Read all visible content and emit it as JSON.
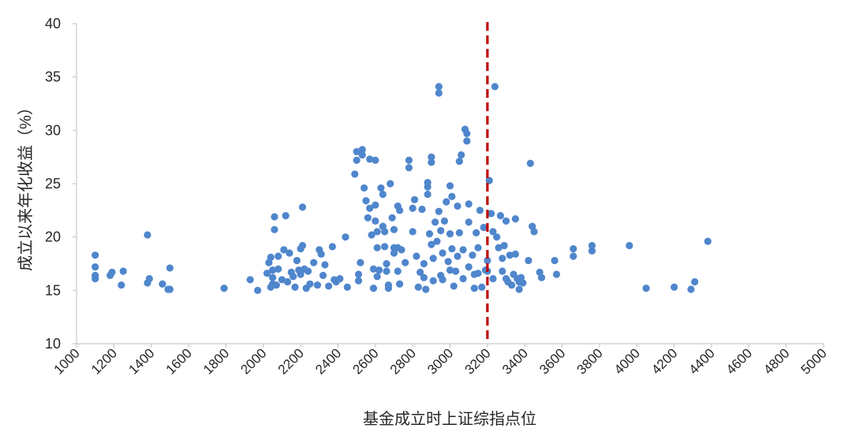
{
  "chart_data": {
    "type": "scatter",
    "title": "",
    "xlabel": "基金成立时上证综指点位",
    "ylabel": "成立以来年化收益（%）",
    "xlim": [
      1000,
      5000
    ],
    "ylim": [
      10,
      40
    ],
    "x_ticks": [
      1000,
      1200,
      1400,
      1600,
      1800,
      2000,
      2200,
      2400,
      2600,
      2800,
      3000,
      3200,
      3400,
      3600,
      3800,
      4000,
      4200,
      4400,
      4600,
      4800,
      5000
    ],
    "y_ticks": [
      10,
      15,
      20,
      25,
      30,
      35,
      40
    ],
    "grid": false,
    "legend": "none",
    "reference_line": {
      "x": 3200,
      "style": "dashed",
      "color": "#c00000"
    },
    "colors": {
      "points": "#4f86cc",
      "axis": "#bfbfbf",
      "text": "#262626",
      "reference": "#c00000"
    },
    "series": [
      {
        "points": [
          [
            1100,
            18.3
          ],
          [
            1100,
            17.2
          ],
          [
            1100,
            16.4
          ],
          [
            1100,
            16.1
          ],
          [
            1180,
            16.4
          ],
          [
            1190,
            16.7
          ],
          [
            1240,
            15.5
          ],
          [
            1250,
            16.8
          ],
          [
            1380,
            20.2
          ],
          [
            1380,
            15.7
          ],
          [
            1390,
            16.1
          ],
          [
            1460,
            15.6
          ],
          [
            1490,
            15.1
          ],
          [
            1500,
            15.1
          ],
          [
            1500,
            17.1
          ],
          [
            1790,
            15.2
          ],
          [
            1930,
            16.0
          ],
          [
            1970,
            15.0
          ],
          [
            2020,
            16.6
          ],
          [
            2030,
            17.6
          ],
          [
            2040,
            18.1
          ],
          [
            2040,
            15.3
          ],
          [
            2050,
            16.9
          ],
          [
            2050,
            16.2
          ],
          [
            2050,
            15.6
          ],
          [
            2060,
            20.7
          ],
          [
            2060,
            21.9
          ],
          [
            2070,
            15.5
          ],
          [
            2080,
            18.2
          ],
          [
            2080,
            17.0
          ],
          [
            2100,
            16.0
          ],
          [
            2110,
            18.8
          ],
          [
            2120,
            22.0
          ],
          [
            2130,
            15.8
          ],
          [
            2140,
            18.5
          ],
          [
            2150,
            16.7
          ],
          [
            2160,
            16.3
          ],
          [
            2170,
            15.3
          ],
          [
            2180,
            17.8
          ],
          [
            2190,
            16.9
          ],
          [
            2200,
            16.5
          ],
          [
            2200,
            18.9
          ],
          [
            2210,
            19.2
          ],
          [
            2210,
            22.8
          ],
          [
            2220,
            17.0
          ],
          [
            2230,
            15.2
          ],
          [
            2240,
            16.8
          ],
          [
            2250,
            15.6
          ],
          [
            2270,
            17.6
          ],
          [
            2290,
            15.5
          ],
          [
            2300,
            18.8
          ],
          [
            2310,
            18.4
          ],
          [
            2320,
            16.4
          ],
          [
            2330,
            17.4
          ],
          [
            2350,
            15.4
          ],
          [
            2370,
            19.1
          ],
          [
            2380,
            16.0
          ],
          [
            2390,
            15.8
          ],
          [
            2410,
            16.1
          ],
          [
            2440,
            20.0
          ],
          [
            2450,
            15.3
          ],
          [
            2490,
            25.9
          ],
          [
            2500,
            27.2
          ],
          [
            2500,
            28.0
          ],
          [
            2510,
            16.5
          ],
          [
            2510,
            15.9
          ],
          [
            2520,
            17.6
          ],
          [
            2530,
            28.2
          ],
          [
            2530,
            27.7
          ],
          [
            2540,
            24.6
          ],
          [
            2550,
            23.4
          ],
          [
            2560,
            21.8
          ],
          [
            2570,
            27.3
          ],
          [
            2570,
            22.7
          ],
          [
            2580,
            20.2
          ],
          [
            2590,
            17.0
          ],
          [
            2590,
            15.2
          ],
          [
            2600,
            27.2
          ],
          [
            2600,
            23.0
          ],
          [
            2600,
            21.5
          ],
          [
            2610,
            20.5
          ],
          [
            2610,
            19.0
          ],
          [
            2610,
            16.3
          ],
          [
            2620,
            16.9
          ],
          [
            2630,
            24.6
          ],
          [
            2640,
            24.0
          ],
          [
            2640,
            21.0
          ],
          [
            2650,
            20.5
          ],
          [
            2650,
            19.1
          ],
          [
            2660,
            17.5
          ],
          [
            2660,
            16.8
          ],
          [
            2670,
            15.5
          ],
          [
            2670,
            15.2
          ],
          [
            2680,
            25.0
          ],
          [
            2690,
            21.8
          ],
          [
            2700,
            20.7
          ],
          [
            2700,
            19.0
          ],
          [
            2700,
            18.5
          ],
          [
            2720,
            22.9
          ],
          [
            2720,
            19.0
          ],
          [
            2720,
            16.8
          ],
          [
            2730,
            22.5
          ],
          [
            2730,
            15.6
          ],
          [
            2740,
            18.8
          ],
          [
            2760,
            17.6
          ],
          [
            2780,
            27.2
          ],
          [
            2780,
            26.5
          ],
          [
            2800,
            22.7
          ],
          [
            2800,
            20.5
          ],
          [
            2810,
            23.5
          ],
          [
            2820,
            18.2
          ],
          [
            2830,
            15.3
          ],
          [
            2840,
            16.7
          ],
          [
            2850,
            22.6
          ],
          [
            2860,
            17.5
          ],
          [
            2860,
            16.2
          ],
          [
            2870,
            15.1
          ],
          [
            2880,
            25.1
          ],
          [
            2880,
            24.7
          ],
          [
            2880,
            24.0
          ],
          [
            2890,
            20.3
          ],
          [
            2900,
            27.5
          ],
          [
            2900,
            27.0
          ],
          [
            2900,
            19.3
          ],
          [
            2910,
            18.0
          ],
          [
            2910,
            15.9
          ],
          [
            2920,
            21.4
          ],
          [
            2930,
            19.6
          ],
          [
            2940,
            34.1
          ],
          [
            2940,
            33.5
          ],
          [
            2940,
            22.4
          ],
          [
            2950,
            20.6
          ],
          [
            2950,
            16.4
          ],
          [
            2960,
            18.5
          ],
          [
            2960,
            16.0
          ],
          [
            2970,
            21.5
          ],
          [
            2980,
            23.3
          ],
          [
            2990,
            17.7
          ],
          [
            3000,
            24.8
          ],
          [
            3000,
            20.3
          ],
          [
            3000,
            16.9
          ],
          [
            3010,
            23.8
          ],
          [
            3010,
            18.9
          ],
          [
            3020,
            15.4
          ],
          [
            3030,
            16.8
          ],
          [
            3040,
            22.9
          ],
          [
            3040,
            18.2
          ],
          [
            3050,
            27.1
          ],
          [
            3050,
            20.4
          ],
          [
            3060,
            27.7
          ],
          [
            3070,
            18.8
          ],
          [
            3070,
            16.1
          ],
          [
            3080,
            30.1
          ],
          [
            3090,
            29.7
          ],
          [
            3090,
            29.0
          ],
          [
            3100,
            23.1
          ],
          [
            3100,
            21.4
          ],
          [
            3100,
            17.2
          ],
          [
            3120,
            18.3
          ],
          [
            3130,
            16.5
          ],
          [
            3130,
            15.2
          ],
          [
            3140,
            20.4
          ],
          [
            3150,
            19.0
          ],
          [
            3150,
            16.6
          ],
          [
            3160,
            22.5
          ],
          [
            3170,
            15.3
          ],
          [
            3180,
            20.9
          ],
          [
            3190,
            16.9
          ],
          [
            3200,
            17.8
          ],
          [
            3200,
            16.8
          ],
          [
            3210,
            25.3
          ],
          [
            3220,
            22.2
          ],
          [
            3230,
            20.5
          ],
          [
            3230,
            16.1
          ],
          [
            3240,
            34.1
          ],
          [
            3250,
            20.0
          ],
          [
            3260,
            19.0
          ],
          [
            3270,
            22.0
          ],
          [
            3280,
            18.0
          ],
          [
            3280,
            16.8
          ],
          [
            3290,
            19.2
          ],
          [
            3300,
            21.5
          ],
          [
            3300,
            16.1
          ],
          [
            3310,
            15.8
          ],
          [
            3320,
            18.3
          ],
          [
            3330,
            15.5
          ],
          [
            3340,
            16.5
          ],
          [
            3350,
            21.7
          ],
          [
            3350,
            18.4
          ],
          [
            3360,
            16.1
          ],
          [
            3370,
            15.8
          ],
          [
            3370,
            15.1
          ],
          [
            3380,
            16.2
          ],
          [
            3390,
            15.7
          ],
          [
            3420,
            17.8
          ],
          [
            3430,
            26.9
          ],
          [
            3440,
            21.0
          ],
          [
            3450,
            20.5
          ],
          [
            3480,
            16.7
          ],
          [
            3490,
            16.2
          ],
          [
            3560,
            17.8
          ],
          [
            3570,
            16.5
          ],
          [
            3660,
            18.9
          ],
          [
            3660,
            18.2
          ],
          [
            3760,
            18.7
          ],
          [
            3760,
            19.2
          ],
          [
            3960,
            19.2
          ],
          [
            4050,
            15.2
          ],
          [
            4200,
            15.3
          ],
          [
            4290,
            15.1
          ],
          [
            4310,
            15.8
          ],
          [
            4380,
            19.6
          ]
        ]
      }
    ]
  }
}
